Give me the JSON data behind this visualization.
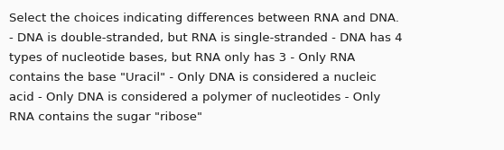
{
  "background_color": "#fafafa",
  "text_color": "#1a1a1a",
  "all_lines": [
    "Select the choices indicating differences between RNA and DNA.",
    "- DNA is double-stranded, but RNA is single-stranded - DNA has 4",
    "types of nucleotide bases, but RNA only has 3 - Only RNA",
    "contains the base \"Uracil\" - Only DNA is considered a nucleic",
    "acid - Only DNA is considered a polymer of nucleotides - Only",
    "RNA contains the sugar \"ribose\""
  ],
  "font_size": 9.5,
  "fig_width": 5.58,
  "fig_height": 1.67,
  "dpi": 100
}
